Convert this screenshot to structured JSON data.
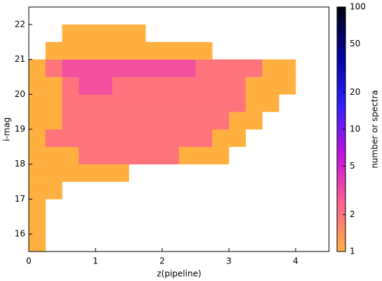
{
  "chart_data": {
    "type": "heatmap",
    "x_label": "z(pipeline)",
    "y_label": "i-mag",
    "x_edges": [
      0,
      0.25,
      0.5,
      0.75,
      1,
      1.25,
      1.5,
      1.75,
      2,
      2.25,
      2.5,
      2.75,
      3,
      3.25,
      3.5,
      3.75,
      4,
      4.25,
      4.5
    ],
    "y_edges": [
      15.5,
      16,
      16.5,
      17,
      17.5,
      18,
      18.5,
      19,
      19.5,
      20,
      20.5,
      21,
      21.5,
      22,
      22.5
    ],
    "values": [
      [
        1,
        null,
        null,
        null,
        null,
        null,
        null,
        null,
        null,
        null,
        null,
        null,
        null,
        null,
        null,
        null,
        null,
        null
      ],
      [
        1,
        null,
        null,
        null,
        null,
        null,
        null,
        null,
        null,
        null,
        null,
        null,
        null,
        null,
        null,
        null,
        null,
        null
      ],
      [
        1,
        null,
        null,
        null,
        null,
        null,
        null,
        null,
        null,
        null,
        null,
        null,
        null,
        null,
        null,
        null,
        null,
        null
      ],
      [
        1,
        1,
        null,
        null,
        null,
        null,
        null,
        null,
        null,
        null,
        null,
        null,
        null,
        null,
        null,
        null,
        null,
        null
      ],
      [
        1,
        1,
        1,
        1,
        1,
        1,
        null,
        null,
        null,
        null,
        null,
        null,
        null,
        null,
        null,
        null,
        null,
        null
      ],
      [
        1,
        1,
        1,
        2,
        2,
        2,
        2,
        2,
        2,
        1,
        1,
        1,
        null,
        null,
        null,
        null,
        null,
        null
      ],
      [
        1,
        2,
        2,
        2,
        2,
        2,
        2,
        2,
        2,
        2,
        2,
        1,
        1,
        null,
        null,
        null,
        null,
        null
      ],
      [
        1,
        1,
        2,
        2,
        2,
        2,
        2,
        2,
        2,
        2,
        2,
        2,
        1,
        1,
        null,
        null,
        null,
        null
      ],
      [
        1,
        1,
        2,
        2,
        2,
        2,
        2,
        2,
        2,
        2,
        2,
        2,
        2,
        1,
        1,
        null,
        null,
        null
      ],
      [
        1,
        1,
        2,
        3,
        3,
        2,
        2,
        2,
        2,
        2,
        2,
        2,
        2,
        1,
        1,
        1,
        null,
        null
      ],
      [
        1,
        2,
        3,
        3,
        3,
        3,
        3,
        3,
        3,
        3,
        2,
        2,
        2,
        2,
        1,
        1,
        null,
        null
      ],
      [
        null,
        1,
        1,
        1,
        1,
        1,
        1,
        1,
        1,
        1,
        1,
        null,
        null,
        null,
        null,
        null,
        null,
        null
      ],
      [
        null,
        null,
        1,
        1,
        1,
        1,
        1,
        null,
        null,
        null,
        null,
        null,
        null,
        null,
        null,
        null,
        null,
        null
      ],
      [
        null,
        null,
        null,
        null,
        null,
        null,
        null,
        null,
        null,
        null,
        null,
        null,
        null,
        null,
        null,
        null,
        null,
        null
      ]
    ],
    "xlim": [
      0,
      4.5
    ],
    "xticks": [
      0,
      1,
      2,
      3,
      4
    ],
    "ylim": [
      15.5,
      22.5
    ],
    "yticks": [
      16,
      17,
      18,
      19,
      20,
      21,
      22
    ],
    "colorbar": {
      "label": "number or spectra",
      "log": true,
      "lim": [
        1,
        100
      ],
      "ticks": [
        1,
        2,
        5,
        10,
        20,
        50,
        100
      ],
      "colormap": [
        "#ffb040",
        "#ff6090",
        "#c010e0",
        "#3020ff",
        "#0000a0",
        "#000010"
      ]
    }
  }
}
